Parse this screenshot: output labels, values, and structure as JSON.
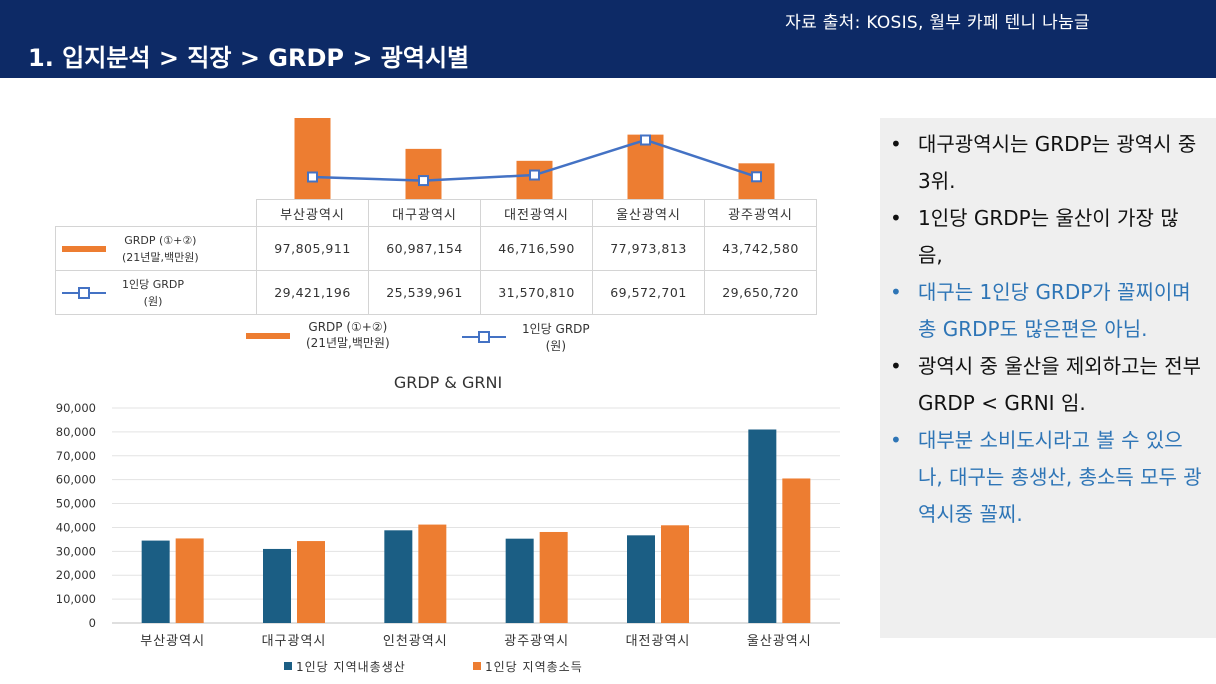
{
  "header": {
    "source": "자료 출처: KOSIS, 월부 카페 텐니 나눔글",
    "title": "1. 입지분석 > 직장 > GRDP > 광역시별"
  },
  "colors": {
    "navy": "#0d2a66",
    "orange": "#ed7d31",
    "blue_line": "#4472c4",
    "dark_teal": "#1b5e84",
    "blue_text": "#2e75b6"
  },
  "chart_data": [
    {
      "type": "bar",
      "categories": [
        "부산광역시",
        "대구광역시",
        "대전광역시",
        "울산광역시",
        "광주광역시"
      ],
      "series": [
        {
          "name": "GRDP (①+②) (21년말,백만원)",
          "kind": "bar",
          "values": [
            97805911,
            60987154,
            46716590,
            77973813,
            43742580
          ],
          "labels": [
            "97,805,911",
            "60,987,154",
            "46,716,590",
            "77,973,813",
            "43,742,580"
          ]
        },
        {
          "name": "1인당 GRDP (원)",
          "kind": "line",
          "values": [
            29421196,
            25539961,
            31570810,
            69572701,
            29650720
          ],
          "labels": [
            "29,421,196",
            "25,539,961",
            "31,570,810",
            "69,572,701",
            "29,650,720"
          ]
        }
      ],
      "legend": [
        {
          "line1": "GRDP (①+②)",
          "line2": "(21년말,백만원)",
          "icon": "orange-bar"
        },
        {
          "line1": "1인당 GRDP",
          "line2": "(원)",
          "icon": "blue-line-marker"
        }
      ],
      "legend_position": "bottom",
      "data_table": true
    },
    {
      "type": "bar",
      "title": "GRDP & GRNI",
      "categories": [
        "부산광역시",
        "대구광역시",
        "인천광역시",
        "광주광역시",
        "대전광역시",
        "울산광역시"
      ],
      "series": [
        {
          "name": "1인당 지역내총생산",
          "color": "#1b5e84",
          "values": [
            34500,
            31000,
            38800,
            35300,
            36700,
            81000
          ]
        },
        {
          "name": "1인당 지역총소득",
          "color": "#ed7d31",
          "values": [
            35400,
            34300,
            41200,
            38100,
            40900,
            60500
          ]
        }
      ],
      "yticks": [
        "90,000",
        "80,000",
        "70,000",
        "60,000",
        "50,000",
        "40,000",
        "30,000",
        "20,000",
        "10,000",
        "0"
      ],
      "ylim": [
        0,
        90000
      ],
      "grid": true,
      "legend_position": "bottom"
    }
  ],
  "bullets": [
    {
      "text": "대구광역시는 GRDP는 광역시 중 3위.",
      "style": "black"
    },
    {
      "text": "1인당 GRDP는 울산이 가장 많음,",
      "style": "black"
    },
    {
      "text": "대구는 1인당 GRDP가 꼴찌이며 총 GRDP도 많은편은 아님.",
      "style": "blue"
    },
    {
      "text": "광역시 중 울산을 제외하고는 전부 GRDP < GRNI 임.",
      "style": "black"
    },
    {
      "text": "대부분 소비도시라고 볼 수 있으나, 대구는 총생산, 총소득 모두 광역시중 꼴찌.",
      "style": "blue"
    }
  ]
}
